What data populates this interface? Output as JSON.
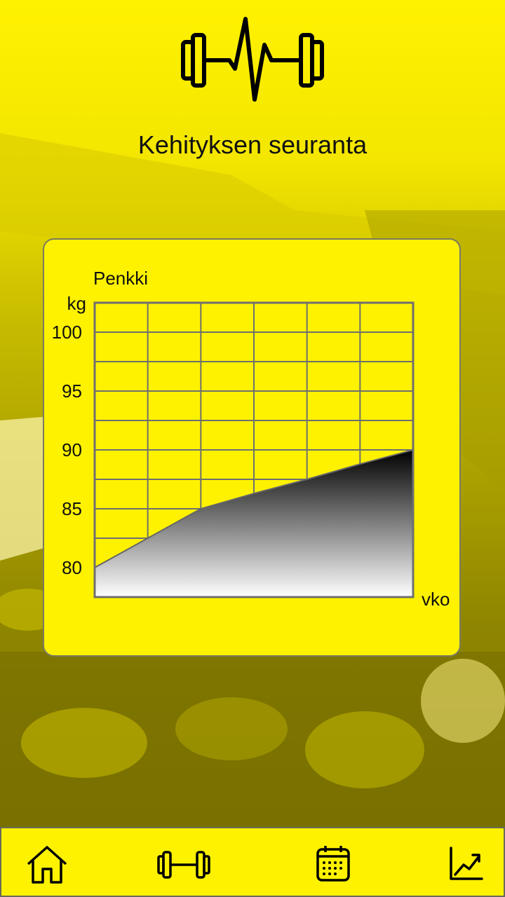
{
  "page": {
    "title": "Kehityksen seuranta"
  },
  "logo": {
    "icon": "dumbbell-heartbeat-icon"
  },
  "colors": {
    "accent": "#fff200",
    "text": "#111111",
    "border": "#6f6f6f"
  },
  "chart_data": {
    "type": "area",
    "title": "Penkki",
    "ylabel": "kg",
    "xlabel": "vko",
    "ylim": [
      77.5,
      102.5
    ],
    "yticks": [
      80,
      85,
      90,
      95,
      100
    ],
    "x": [
      1,
      2,
      3,
      4,
      5,
      6,
      7
    ],
    "values": [
      80,
      82.5,
      85,
      86.3,
      87.5,
      88.8,
      90
    ],
    "grid": true,
    "fill": "gradient-black-to-white"
  },
  "nav": {
    "items": [
      {
        "name": "home",
        "icon": "home-icon"
      },
      {
        "name": "workouts",
        "icon": "dumbbell-icon"
      },
      {
        "name": "calendar",
        "icon": "calendar-icon"
      },
      {
        "name": "progress",
        "icon": "trend-chart-icon"
      }
    ]
  }
}
